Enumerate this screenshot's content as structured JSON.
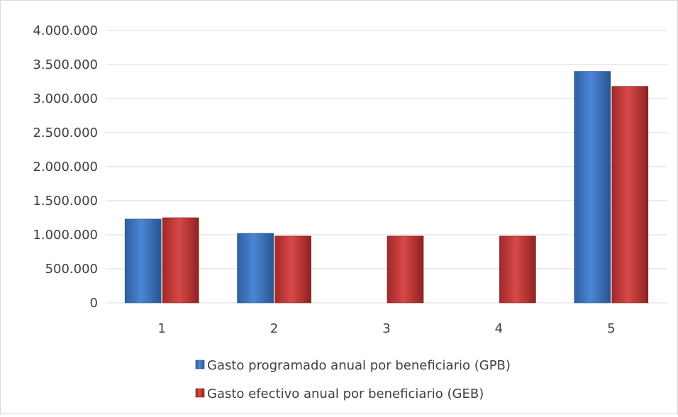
{
  "chart_data": {
    "type": "bar",
    "title": "",
    "xlabel": "",
    "ylabel": "",
    "categories": [
      "1",
      "2",
      "3",
      "4",
      "5"
    ],
    "ylim": [
      0,
      4000000
    ],
    "yticks": [
      "0",
      "500.000",
      "1.000.000",
      "1.500.000",
      "2.000.000",
      "2.500.000",
      "3.000.000",
      "3.500.000",
      "4.000.000"
    ],
    "ytick_values": [
      0,
      500000,
      1000000,
      1500000,
      2000000,
      2500000,
      3000000,
      3500000,
      4000000
    ],
    "grid": true,
    "legend_position": "bottom",
    "series": [
      {
        "name": "Gasto programado anual por beneficiario (GPB)",
        "color": "#3a74c4",
        "values": [
          1230000,
          1020000,
          null,
          null,
          3400000
        ]
      },
      {
        "name": "Gasto efectivo anual por beneficiario (GEB)",
        "color": "#c83a3a",
        "values": [
          1250000,
          980000,
          980000,
          980000,
          3180000
        ]
      }
    ]
  }
}
